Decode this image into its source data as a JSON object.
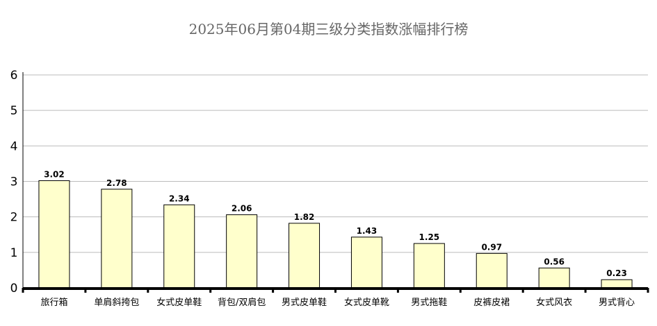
{
  "chart_data": {
    "type": "bar",
    "title": "2025年06月第04期三级分类指数涨幅排行榜",
    "categories": [
      "旅行箱",
      "单肩斜挎包",
      "女式皮单鞋",
      "背包/双肩包",
      "男式皮单鞋",
      "女式皮单靴",
      "男式拖鞋",
      "皮裤皮裙",
      "女式风衣",
      "男式背心"
    ],
    "values": [
      3.02,
      2.78,
      2.34,
      2.06,
      1.82,
      1.43,
      1.25,
      0.97,
      0.56,
      0.23
    ],
    "value_labels": [
      "3.02",
      "2.78",
      "2.34",
      "2.06",
      "1.82",
      "1.43",
      "1.25",
      "0.97",
      "0.56",
      "0.23"
    ],
    "ylim": [
      0,
      6
    ],
    "yticks": [
      0,
      1,
      2,
      3,
      4,
      5,
      6
    ],
    "grid": true,
    "colors": {
      "bar_fill": "#ffffcc",
      "bar_stroke": "#000000",
      "grid": "#bbbbbb",
      "axis": "#000000",
      "title": "#666666"
    }
  }
}
